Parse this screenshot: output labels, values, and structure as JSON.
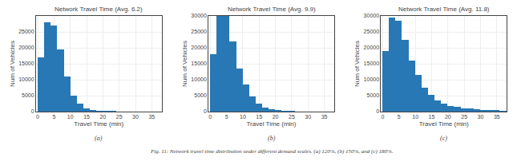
{
  "chart_data": [
    {
      "type": "histogram",
      "title": "Network Travel Time (Avg. 6.2)",
      "xlabel": "Travel Time (min)",
      "ylabel": "Num of Vehicles",
      "bins": [
        0,
        2,
        4,
        6,
        8,
        10,
        12,
        14,
        16,
        18,
        20,
        22,
        24,
        26,
        28,
        30,
        32,
        34,
        36,
        38
      ],
      "values": [
        17000,
        28000,
        27000,
        19500,
        11000,
        5000,
        2500,
        1000,
        500,
        200,
        100,
        50,
        0,
        0,
        0,
        0,
        0,
        0,
        0
      ],
      "color": "#2878b5",
      "xlim": [
        -0.5,
        38
      ],
      "xticks": [
        0,
        5,
        10,
        15,
        20,
        25,
        30,
        35
      ],
      "ylim": [
        0,
        30000
      ],
      "yticks": [
        0,
        5000,
        10000,
        15000,
        20000,
        25000
      ],
      "grid": true,
      "annotations": [
        "(a)"
      ]
    },
    {
      "type": "histogram",
      "title": "Network Travel Time (Avg. 9.9)",
      "xlabel": "Travel Time (min)",
      "ylabel": "Num of Vehicles",
      "bins": [
        0,
        2,
        4,
        6,
        8,
        10,
        12,
        14,
        16,
        18,
        20,
        22,
        24,
        26,
        28,
        30,
        32,
        34,
        36,
        38
      ],
      "values": [
        18000,
        30000,
        30000,
        22000,
        13500,
        8500,
        4700,
        2500,
        1200,
        800,
        400,
        200,
        100,
        0,
        0,
        0,
        0,
        0,
        0
      ],
      "color": "#2878b5",
      "xlim": [
        -0.5,
        38
      ],
      "xticks": [
        0,
        5,
        10,
        15,
        20,
        25,
        30,
        35
      ],
      "ylim": [
        0,
        30000
      ],
      "yticks": [
        0,
        5000,
        10000,
        15000,
        20000,
        25000,
        30000
      ],
      "grid": true,
      "annotations": [
        "(b)"
      ]
    },
    {
      "type": "histogram",
      "title": "Network Travel Time (Avg. 11.8)",
      "xlabel": "Travel Time (min)",
      "ylabel": "Num of Vehicles",
      "bins": [
        0,
        2,
        4,
        6,
        8,
        10,
        12,
        14,
        16,
        18,
        20,
        22,
        24,
        26,
        28,
        30,
        32,
        34,
        36,
        38
      ],
      "values": [
        19000,
        29500,
        28500,
        22500,
        16000,
        11500,
        7500,
        5200,
        3500,
        2500,
        1800,
        1400,
        1100,
        900,
        700,
        500,
        400,
        300,
        200
      ],
      "color": "#2878b5",
      "xlim": [
        -0.5,
        38
      ],
      "xticks": [
        0,
        5,
        10,
        15,
        20,
        25,
        30,
        35
      ],
      "ylim": [
        0,
        30000
      ],
      "yticks": [
        0,
        5000,
        10000,
        15000,
        20000,
        25000,
        30000
      ],
      "grid": true,
      "annotations": [
        "(c)"
      ]
    }
  ],
  "caption": "Fig. 11: Network travel time distribution under different demand scales. (a) 120%, (b) 150%, and (c) 180%."
}
